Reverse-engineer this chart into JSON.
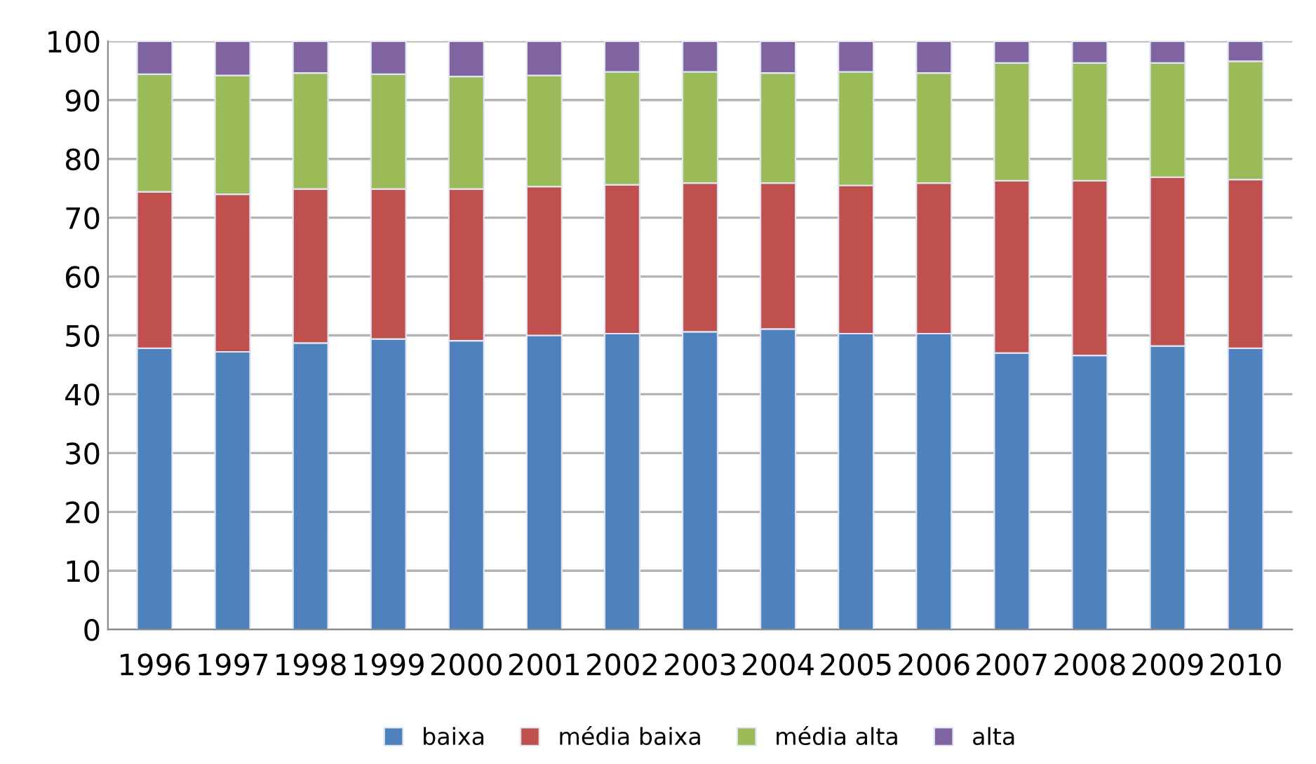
{
  "chart_data": {
    "type": "bar",
    "stacked": true,
    "categories": [
      "1996",
      "1997",
      "1998",
      "1999",
      "2000",
      "2001",
      "2002",
      "2003",
      "2004",
      "2005",
      "2006",
      "2007",
      "2008",
      "2009",
      "2010"
    ],
    "series": [
      {
        "name": "baixa",
        "color": "#4f81bd",
        "values": [
          47.8,
          47.2,
          48.7,
          49.4,
          49.1,
          50.0,
          50.3,
          50.6,
          51.1,
          50.3,
          50.3,
          47.0,
          46.6,
          48.2,
          47.8
        ]
      },
      {
        "name": "média baixa",
        "color": "#c0504d",
        "values": [
          26.6,
          26.8,
          26.2,
          25.5,
          25.8,
          25.3,
          25.3,
          25.3,
          24.8,
          25.2,
          25.6,
          29.3,
          29.7,
          28.7,
          28.7
        ]
      },
      {
        "name": "média alta",
        "color": "#9bbb59",
        "values": [
          20.0,
          20.2,
          19.7,
          19.5,
          19.1,
          18.9,
          19.2,
          18.9,
          18.7,
          19.3,
          18.7,
          20.0,
          20.0,
          19.4,
          20.1
        ]
      },
      {
        "name": "alta",
        "color": "#8064a2",
        "values": [
          5.6,
          5.8,
          5.4,
          5.6,
          6.0,
          5.8,
          5.2,
          5.2,
          5.4,
          5.2,
          5.4,
          3.7,
          3.7,
          3.7,
          3.4
        ]
      }
    ],
    "ylim": [
      0,
      100
    ],
    "yticks": [
      0,
      10,
      20,
      30,
      40,
      50,
      60,
      70,
      80,
      90,
      100
    ],
    "grid": "y",
    "legend": "bottom"
  }
}
